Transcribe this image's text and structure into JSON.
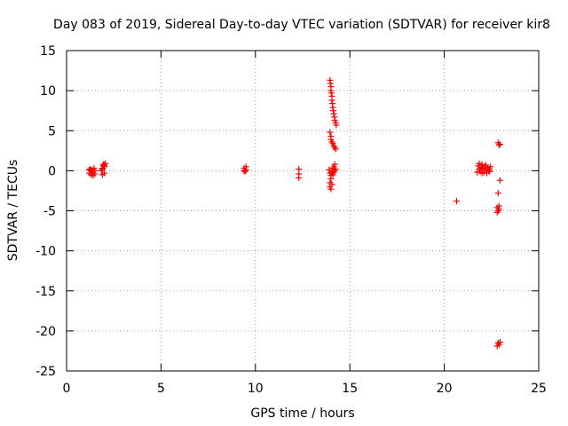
{
  "chart_data": {
    "type": "scatter",
    "title": "Day 083 of 2019, Sidereal Day-to-day VTEC variation (SDTVAR) for receiver kir8",
    "xlabel": "GPS time / hours",
    "ylabel": "SDTVAR / TECUs",
    "xlim": [
      0,
      25
    ],
    "ylim": [
      -25,
      15
    ],
    "xticks": [
      0,
      5,
      10,
      15,
      20,
      25
    ],
    "yticks": [
      -25,
      -20,
      -15,
      -10,
      -5,
      0,
      5,
      10,
      15
    ],
    "grid": true,
    "marker": "+",
    "color": "#ff0000",
    "series": [
      {
        "name": "SDTVAR",
        "points": [
          [
            1.2,
            -0.3
          ],
          [
            1.25,
            0.2
          ],
          [
            1.3,
            -0.5
          ],
          [
            1.35,
            0.1
          ],
          [
            1.4,
            -0.2
          ],
          [
            1.45,
            0.3
          ],
          [
            1.5,
            -0.4
          ],
          [
            1.3,
            0.0
          ],
          [
            1.4,
            -0.6
          ],
          [
            1.2,
            0.1
          ],
          [
            1.5,
            0.0
          ],
          [
            1.35,
            -0.3
          ],
          [
            1.9,
            0.3
          ],
          [
            1.95,
            0.8
          ],
          [
            2.0,
            0.5
          ],
          [
            1.85,
            0.0
          ],
          [
            1.9,
            -0.5
          ],
          [
            2.0,
            -0.3
          ],
          [
            1.95,
            0.6
          ],
          [
            2.05,
            0.9
          ],
          [
            1.9,
            0.2
          ],
          [
            2.0,
            0.7
          ],
          [
            9.4,
            0.3
          ],
          [
            9.45,
            -0.1
          ],
          [
            9.5,
            0.1
          ],
          [
            9.4,
            0.0
          ],
          [
            9.5,
            0.5
          ],
          [
            12.3,
            0.2
          ],
          [
            12.3,
            -0.4
          ],
          [
            12.3,
            -0.9
          ],
          [
            13.95,
            11.3
          ],
          [
            13.97,
            10.9
          ],
          [
            14.0,
            10.5
          ],
          [
            14.0,
            10.0
          ],
          [
            14.02,
            9.7
          ],
          [
            14.05,
            9.3
          ],
          [
            14.05,
            8.8
          ],
          [
            14.08,
            8.4
          ],
          [
            14.1,
            7.9
          ],
          [
            14.12,
            7.5
          ],
          [
            14.15,
            7.1
          ],
          [
            14.18,
            6.7
          ],
          [
            14.2,
            6.3
          ],
          [
            14.25,
            6.0
          ],
          [
            14.28,
            5.7
          ],
          [
            13.95,
            4.8
          ],
          [
            14.0,
            4.3
          ],
          [
            14.0,
            3.9
          ],
          [
            14.05,
            3.6
          ],
          [
            14.1,
            3.4
          ],
          [
            14.15,
            3.1
          ],
          [
            14.2,
            2.9
          ],
          [
            14.25,
            2.7
          ],
          [
            13.9,
            0.1
          ],
          [
            13.95,
            -0.3
          ],
          [
            14.0,
            -0.6
          ],
          [
            14.05,
            -0.1
          ],
          [
            14.1,
            0.3
          ],
          [
            14.15,
            0.5
          ],
          [
            14.2,
            0.8
          ],
          [
            14.25,
            0.2
          ],
          [
            14.0,
            -1.0
          ],
          [
            13.95,
            -1.5
          ],
          [
            13.95,
            -2.0
          ],
          [
            14.0,
            -2.3
          ],
          [
            14.05,
            -1.7
          ],
          [
            14.1,
            -0.5
          ],
          [
            14.2,
            0.0
          ],
          [
            14.15,
            -0.2
          ],
          [
            20.65,
            -3.8
          ],
          [
            21.8,
            0.6
          ],
          [
            21.85,
            0.2
          ],
          [
            21.9,
            -0.1
          ],
          [
            21.95,
            0.4
          ],
          [
            22.0,
            0.8
          ],
          [
            22.05,
            0.3
          ],
          [
            22.1,
            -0.2
          ],
          [
            22.15,
            0.5
          ],
          [
            22.2,
            0.1
          ],
          [
            22.25,
            -0.3
          ],
          [
            22.3,
            0.4
          ],
          [
            22.35,
            0.0
          ],
          [
            22.4,
            0.2
          ],
          [
            22.45,
            0.5
          ],
          [
            21.75,
            -0.2
          ],
          [
            21.85,
            0.9
          ],
          [
            22.0,
            -0.3
          ],
          [
            22.2,
            0.7
          ],
          [
            22.4,
            -0.1
          ],
          [
            22.85,
            3.5
          ],
          [
            22.9,
            3.2
          ],
          [
            22.95,
            3.3
          ],
          [
            22.95,
            -1.2
          ],
          [
            22.85,
            -2.8
          ],
          [
            22.8,
            -4.6
          ],
          [
            22.85,
            -5.0
          ],
          [
            22.9,
            -4.8
          ],
          [
            22.8,
            -5.2
          ],
          [
            22.9,
            -4.4
          ],
          [
            22.85,
            -21.5
          ],
          [
            22.9,
            -21.7
          ],
          [
            22.95,
            -21.4
          ],
          [
            22.8,
            -21.9
          ]
        ]
      }
    ]
  }
}
